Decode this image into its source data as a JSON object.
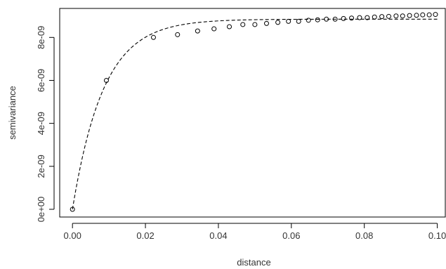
{
  "chart_data": {
    "type": "scatter",
    "title": "",
    "xlabel": "distance",
    "ylabel": "semivariance",
    "xlim": [
      0,
      0.1
    ],
    "ylim": [
      0,
      9.1e-09
    ],
    "xticks": [
      0.0,
      0.02,
      0.04,
      0.06,
      0.08,
      0.1
    ],
    "xtick_labels": [
      "0.00",
      "0.02",
      "0.04",
      "0.06",
      "0.08",
      "0.10"
    ],
    "yticks": [
      0,
      2e-09,
      4e-09,
      6e-09,
      8e-09
    ],
    "ytick_labels": [
      "0e+00",
      "2e-09",
      "4e-09",
      "6e-09",
      "8e-09"
    ],
    "grid": false,
    "points": {
      "marker": "open-circle",
      "x": [
        0.0,
        0.0093,
        0.0222,
        0.0288,
        0.0343,
        0.0388,
        0.043,
        0.0467,
        0.05,
        0.0532,
        0.0563,
        0.0592,
        0.062,
        0.0647,
        0.0672,
        0.0696,
        0.072,
        0.0743,
        0.0765,
        0.0787,
        0.0808,
        0.0828,
        0.0848,
        0.0867,
        0.0887,
        0.0905,
        0.0924,
        0.0943,
        0.096,
        0.0978,
        0.0995
      ],
      "y": [
        0.0,
        6e-09,
        8e-09,
        8.13e-09,
        8.3e-09,
        8.4e-09,
        8.5e-09,
        8.6e-09,
        8.6e-09,
        8.65e-09,
        8.7e-09,
        8.75e-09,
        8.75e-09,
        8.8e-09,
        8.82e-09,
        8.85e-09,
        8.85e-09,
        8.88e-09,
        8.9e-09,
        8.92e-09,
        8.92e-09,
        8.95e-09,
        8.97e-09,
        8.98e-09,
        9e-09,
        9e-09,
        9.02e-09,
        9.03e-09,
        9.05e-09,
        9.05e-09,
        9.07e-09
      ]
    },
    "fitted_curve": {
      "style": "dashed",
      "model": "exponential",
      "nugget": 0.0,
      "sill": 8.85e-09,
      "range": 0.0085,
      "x_range": [
        0.0,
        0.1
      ]
    },
    "colors": {
      "points": "#000000",
      "curve": "#000000",
      "axes": "#000000"
    }
  }
}
